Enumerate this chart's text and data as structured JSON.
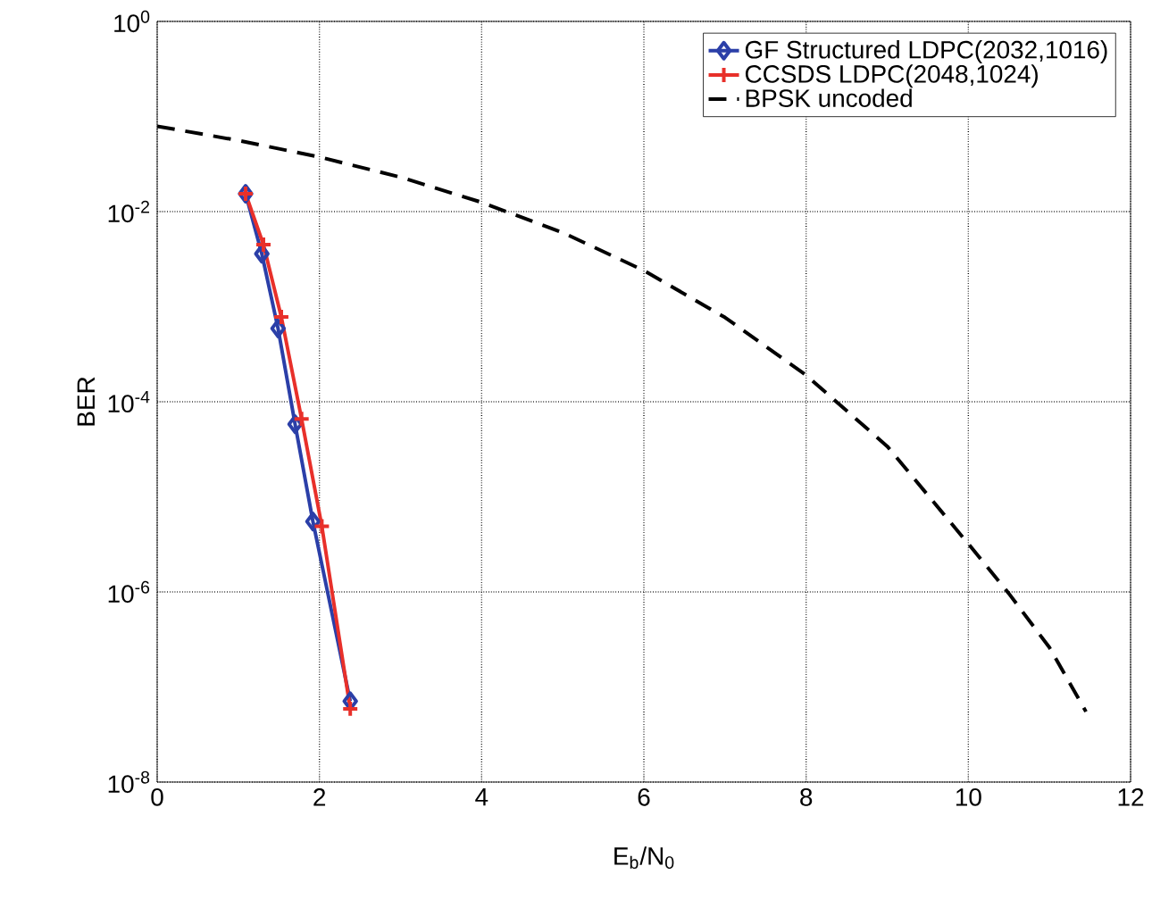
{
  "chart_data": {
    "type": "line",
    "xlabel": "E$_{b}$/N$_{0}$",
    "ylabel": "BER",
    "log": "y",
    "grid": true,
    "legend": "top right",
    "xlim": [
      0,
      12
    ],
    "xticks": [
      0,
      2,
      4,
      6,
      8,
      10,
      12
    ],
    "ylim": [
      1e-08,
      1
    ],
    "yticks": [
      {
        "value": 1e-08,
        "label": "10$^{-8}$"
      },
      {
        "value": 1e-06,
        "label": "10$^{-6}$"
      },
      {
        "value": 0.0001,
        "label": "10$^{-4}$"
      },
      {
        "value": 0.01,
        "label": "10$^{-2}$"
      },
      {
        "value": 1,
        "label": "10$^{0}$"
      }
    ],
    "series": [
      {
        "name": "GF Structured LDPC(2032,1016)",
        "color": "#2b3fa8",
        "marker": "diamond",
        "line_style": "solid",
        "x": [
          1.09,
          1.29,
          1.49,
          1.7,
          1.92,
          2.38
        ],
        "values": [
          0.0154,
          0.0036,
          0.00059,
          5.8e-05,
          5.5e-06,
          7.1e-08
        ]
      },
      {
        "name": "CCSDS LDPC(2048,1024)",
        "color": "#e8302a",
        "marker": "cross",
        "line_style": "solid",
        "x": [
          1.09,
          1.31,
          1.53,
          1.78,
          2.03,
          2.38
        ],
        "values": [
          0.0154,
          0.0045,
          0.00078,
          6.6e-05,
          4.9e-06,
          5.9e-08
        ]
      },
      {
        "name": "BPSK uncoded",
        "color": "#000000",
        "marker": "none",
        "line_style": "dashed",
        "x": [
          0,
          1,
          2,
          3,
          4,
          5,
          6,
          7,
          8,
          9,
          10,
          10.5,
          11,
          11.45
        ],
        "values": [
          0.079,
          0.056,
          0.0375,
          0.023,
          0.0125,
          0.006,
          0.0024,
          0.00077,
          0.00019,
          3.4e-05,
          3.2e-06,
          9.6e-07,
          2.6e-07,
          5.5e-08
        ]
      }
    ]
  }
}
